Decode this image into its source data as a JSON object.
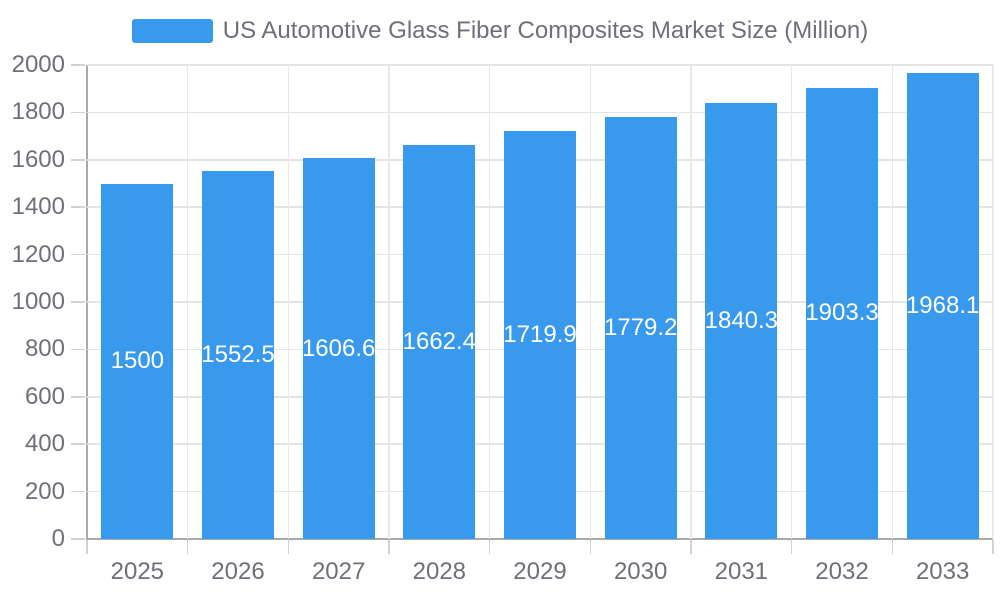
{
  "chart_data": {
    "type": "bar",
    "title": "US Automotive Glass Fiber Composites Market Size (Million)",
    "series_name": "US Automotive Glass Fiber Composites Market Size (Million)",
    "categories": [
      "2025",
      "2026",
      "2027",
      "2028",
      "2029",
      "2030",
      "2031",
      "2032",
      "2033"
    ],
    "values": [
      1500,
      1552.5,
      1606.6,
      1662.4,
      1719.9,
      1779.2,
      1840.3,
      1903.3,
      1968.1
    ],
    "value_labels": [
      "1500",
      "1552.5",
      "1606.6",
      "1662.4",
      "1719.9",
      "1779.2",
      "1840.3",
      "1903.3",
      "1968.1"
    ],
    "xlabel": "",
    "ylabel": "",
    "ylim": [
      0,
      2000
    ],
    "ytick_step": 200,
    "ytick_labels": [
      "0",
      "200",
      "400",
      "600",
      "800",
      "1000",
      "1200",
      "1400",
      "1600",
      "1800",
      "2000"
    ],
    "grid": "on",
    "legend_position": "top",
    "colors": {
      "bar": "#3899ed",
      "value_label": "#ffffff",
      "axis_label": "#6e7079",
      "legend_text": "#6e7079",
      "axis_line": "#a9a9a9",
      "gridline": "#e4e4e4",
      "background": "#ffffff"
    }
  }
}
